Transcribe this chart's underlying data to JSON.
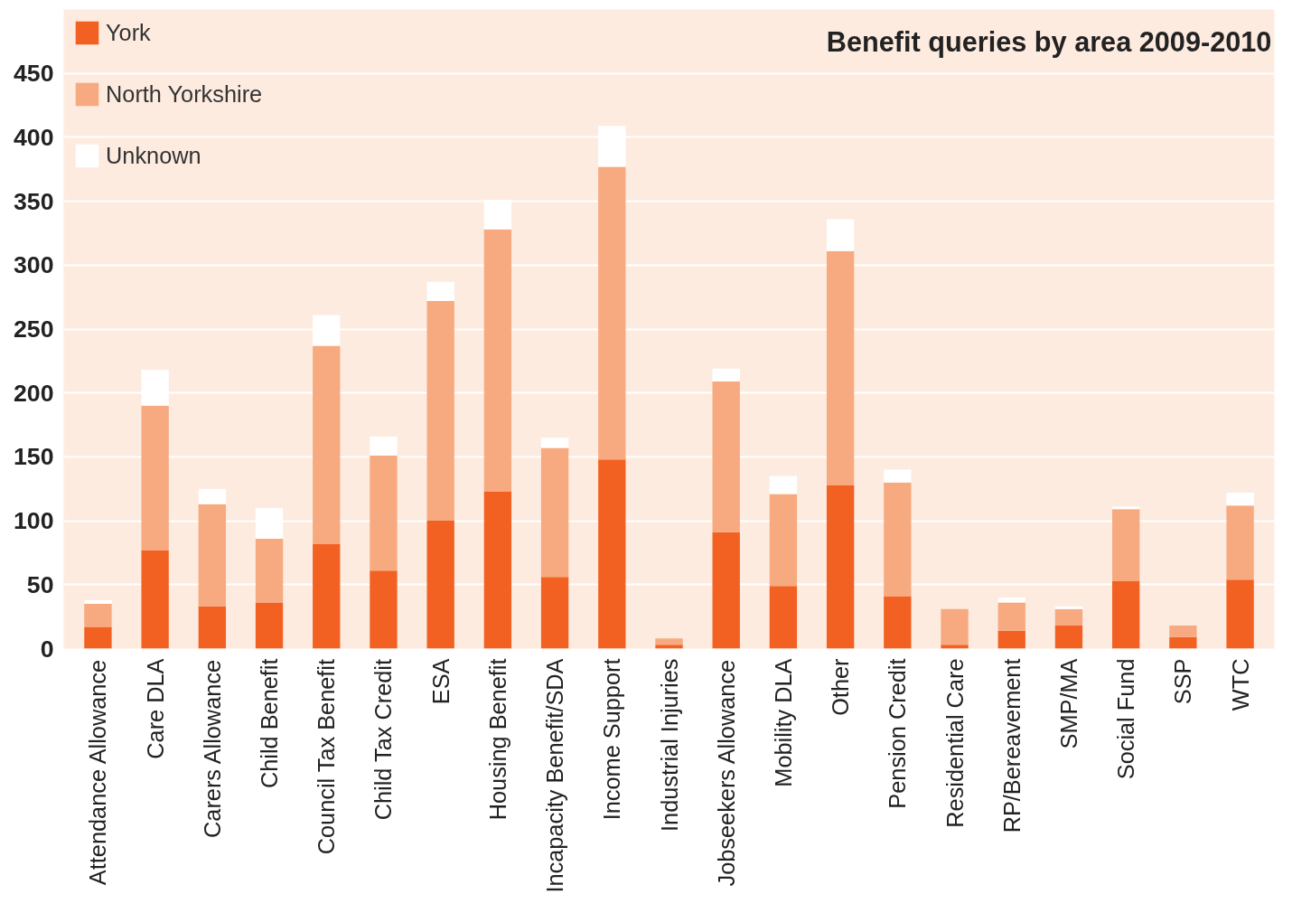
{
  "chart_data": {
    "type": "bar",
    "stacked": true,
    "title": "Benefit queries by area 2009-2010",
    "categories": [
      "Attendance Allowance",
      "Care DLA",
      "Carers Allowance",
      "Child Benefit",
      "Council Tax Benefit",
      "Child Tax Credit",
      "ESA",
      "Housing Benefit",
      "Incapacity Benefit/SDA",
      "Income Support",
      "Industrial Injuries",
      "Jobseekers Allowance",
      "Mobility DLA",
      "Other",
      "Pension Credit",
      "Residential Care",
      "RP/Bereavement",
      "SMP/MA",
      "Social Fund",
      "SSP",
      "WTC"
    ],
    "series": [
      {
        "name": "York",
        "color": "#f26122",
        "values": [
          17,
          77,
          33,
          36,
          82,
          61,
          100,
          123,
          56,
          148,
          3,
          91,
          49,
          128,
          41,
          3,
          14,
          18,
          53,
          9,
          54
        ]
      },
      {
        "name": "North Yorkshire",
        "color": "#f7aa7f",
        "values": [
          18,
          113,
          80,
          50,
          155,
          90,
          172,
          205,
          101,
          229,
          5,
          118,
          72,
          183,
          89,
          28,
          22,
          13,
          56,
          9,
          58
        ]
      },
      {
        "name": "Unknown",
        "color": "#ffffff",
        "values": [
          3,
          28,
          12,
          24,
          24,
          15,
          15,
          23,
          8,
          32,
          0,
          10,
          14,
          25,
          10,
          0,
          4,
          2,
          2,
          0,
          10
        ]
      }
    ],
    "ylim": [
      0,
      500
    ],
    "yticks": [
      0,
      50,
      100,
      150,
      200,
      250,
      300,
      350,
      400,
      450
    ],
    "grid": "y",
    "legend": "top left"
  }
}
